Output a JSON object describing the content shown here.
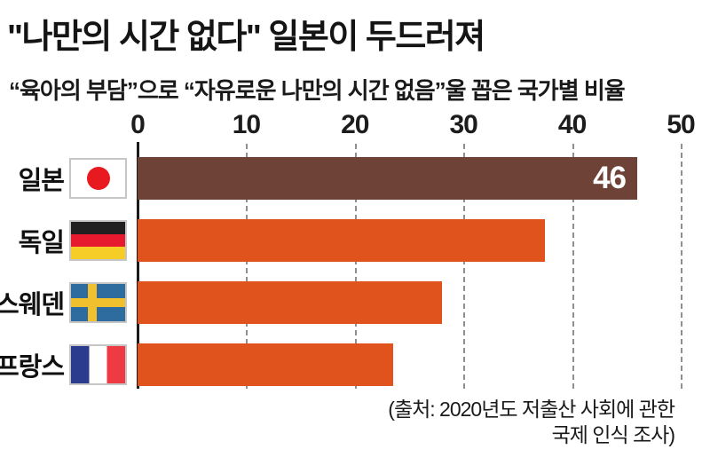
{
  "header": {
    "title": "\"나만의 시간 없다\" 일본이 두드러져",
    "subtitle": "“육아의 부담”으로 “자유로운 나만의 시간 없음”울 꼽은 국가별 비율"
  },
  "chart_data": {
    "type": "bar",
    "orientation": "horizontal",
    "title": "\"나만의 시간 없다\" 일본이 두드러져",
    "subtitle": "“육아의 부담”으로 “자유로운 나만의 시간 없음”울 꼽은 국가별 비율",
    "categories": [
      "일본",
      "독일",
      "스웨덴",
      "프랑스"
    ],
    "values": [
      46,
      37.5,
      28,
      23.5
    ],
    "x_ticks": [
      0,
      10,
      20,
      30,
      40,
      50
    ],
    "xlim": [
      0,
      50
    ],
    "grid": "dashed-vertical",
    "legend": "none",
    "rows": [
      {
        "label": "일본",
        "flag_icon": "japan-flag-icon",
        "value": 46,
        "value_label": "46",
        "color": "#6f4238"
      },
      {
        "label": "독일",
        "flag_icon": "germany-flag-icon",
        "value": 37.5,
        "value_label": "",
        "color": "#e0531d"
      },
      {
        "label": "스웨덴",
        "flag_icon": "sweden-flag-icon",
        "value": 28,
        "value_label": "",
        "color": "#e0531d"
      },
      {
        "label": "프랑스",
        "flag_icon": "france-flag-icon",
        "value": 23.5,
        "value_label": "",
        "color": "#e0531d"
      }
    ]
  },
  "source": {
    "line1": "(출처: 2020년도 저출산 사회에 관한",
    "line2": "국제 인식 조사)"
  },
  "colors": {
    "highlight_bar": "#6f4238",
    "default_bar": "#e0531d",
    "axis": "#1b1b1b",
    "gridline": "#8f8f8f",
    "text": "#161616",
    "bar_value_text": "#ffffff"
  }
}
